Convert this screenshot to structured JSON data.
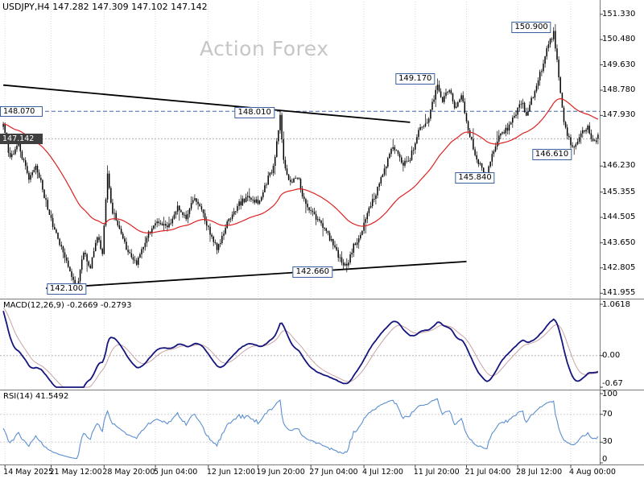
{
  "header": {
    "symbol_title": "USDJPY,H4 147.282 147.309 147.102 147.142",
    "watermark": "Action Forex"
  },
  "panes": {
    "macd_label": "MACD(12,26,9) -0.2669 -0.2793",
    "rsi_label": "RSI(14) 41.5492"
  },
  "axes": {
    "price_ticks": [
      "151.330",
      "150.480",
      "149.630",
      "148.780",
      "147.930",
      "146.230",
      "145.355",
      "144.505",
      "143.650",
      "142.805",
      "141.955"
    ],
    "current_price_tag": "147.142",
    "dashed_level_tag": "148.070",
    "macd_ticks": [
      {
        "label": "1.0618",
        "value": 1.0618
      },
      {
        "label": "0.00",
        "value": 0
      },
      {
        "label": "-0.67",
        "value": -0.67
      }
    ],
    "rsi_ticks": [
      {
        "label": "100",
        "value": 100
      },
      {
        "label": "70",
        "value": 70
      },
      {
        "label": "30",
        "value": 30
      },
      {
        "label": "0",
        "value": 0
      }
    ],
    "time_ticks": [
      {
        "label": "14 May 2025",
        "bar": 1
      },
      {
        "label": "21 May 12:00",
        "bar": 28
      },
      {
        "label": "28 May 20:00",
        "bar": 59
      },
      {
        "label": "5 Jun 04:00",
        "bar": 89
      },
      {
        "label": "12 Jun 12:00",
        "bar": 120
      },
      {
        "label": "19 Jun 20:00",
        "bar": 149
      },
      {
        "label": "27 Jun 04:00",
        "bar": 180
      },
      {
        "label": "4 Jul 12:00",
        "bar": 211
      },
      {
        "label": "11 Jul 20:00",
        "bar": 241
      },
      {
        "label": "21 Jul 04:00",
        "bar": 271
      },
      {
        "label": "28 Jul 12:00",
        "bar": 301
      },
      {
        "label": "4 Aug 00:00",
        "bar": 332
      }
    ]
  },
  "chart_data": {
    "type": "candlestick",
    "symbol": "USDJPY",
    "timeframe": "H4",
    "title": "USDJPY,H4",
    "ohlc_current": {
      "open": 147.282,
      "high": 147.309,
      "low": 147.102,
      "close": 147.142
    },
    "price_axis_range": [
      141.8,
      151.7
    ],
    "bars": 349,
    "seed": 20250805,
    "candle_color": "#000000",
    "ma_line": {
      "type": "EMA",
      "period": 55,
      "color": "#dd2222"
    },
    "price_anchors": [
      [
        0,
        147.55
      ],
      [
        4,
        146.5
      ],
      [
        9,
        146.9
      ],
      [
        15,
        145.8
      ],
      [
        19,
        146.3
      ],
      [
        26,
        144.8
      ],
      [
        31,
        143.9
      ],
      [
        36,
        143.2
      ],
      [
        40,
        142.5
      ],
      [
        43,
        142.15
      ],
      [
        47,
        143.3
      ],
      [
        51,
        142.8
      ],
      [
        55,
        143.9
      ],
      [
        58,
        143.3
      ],
      [
        61,
        145.9
      ],
      [
        63,
        144.9
      ],
      [
        67,
        144.2
      ],
      [
        71,
        143.6
      ],
      [
        78,
        142.95
      ],
      [
        84,
        143.9
      ],
      [
        90,
        144.4
      ],
      [
        96,
        144.1
      ],
      [
        102,
        144.9
      ],
      [
        107,
        144.5
      ],
      [
        112,
        145.2
      ],
      [
        117,
        144.6
      ],
      [
        125,
        143.4
      ],
      [
        131,
        144.3
      ],
      [
        137,
        144.9
      ],
      [
        143,
        145.2
      ],
      [
        149,
        145.0
      ],
      [
        154,
        145.7
      ],
      [
        158,
        146.2
      ],
      [
        162,
        147.9
      ],
      [
        164,
        146.4
      ],
      [
        168,
        145.6
      ],
      [
        172,
        145.9
      ],
      [
        176,
        145.1
      ],
      [
        181,
        144.6
      ],
      [
        187,
        144.2
      ],
      [
        193,
        143.6
      ],
      [
        198,
        143.0
      ],
      [
        201,
        142.8
      ],
      [
        205,
        143.6
      ],
      [
        209,
        143.9
      ],
      [
        213,
        144.6
      ],
      [
        218,
        145.3
      ],
      [
        223,
        146.1
      ],
      [
        228,
        146.9
      ],
      [
        233,
        146.3
      ],
      [
        238,
        146.5
      ],
      [
        243,
        147.4
      ],
      [
        248,
        147.6
      ],
      [
        251,
        148.3
      ],
      [
        254,
        149.0
      ],
      [
        257,
        148.4
      ],
      [
        261,
        148.8
      ],
      [
        264,
        148.2
      ],
      [
        268,
        148.6
      ],
      [
        272,
        147.5
      ],
      [
        276,
        146.6
      ],
      [
        280,
        146.1
      ],
      [
        283,
        145.95
      ],
      [
        287,
        146.8
      ],
      [
        291,
        147.3
      ],
      [
        295,
        147.5
      ],
      [
        299,
        147.9
      ],
      [
        303,
        148.4
      ],
      [
        306,
        148.0
      ],
      [
        310,
        148.6
      ],
      [
        314,
        149.3
      ],
      [
        318,
        150.1
      ],
      [
        322,
        150.75
      ],
      [
        325,
        149.2
      ],
      [
        328,
        147.8
      ],
      [
        331,
        147.1
      ],
      [
        334,
        146.85
      ],
      [
        338,
        147.3
      ],
      [
        342,
        147.5
      ],
      [
        345,
        147.0
      ],
      [
        348,
        147.142
      ]
    ],
    "key_extremes": [
      {
        "bar": 43,
        "low": 142.1
      },
      {
        "bar": 61,
        "high": 146.25
      },
      {
        "bar": 162,
        "high": 148.01
      },
      {
        "bar": 201,
        "low": 142.66
      },
      {
        "bar": 254,
        "high": 149.17
      },
      {
        "bar": 283,
        "low": 145.84
      },
      {
        "bar": 322,
        "high": 150.9
      },
      {
        "bar": 334,
        "low": 146.61
      }
    ],
    "trendlines": [
      {
        "name": "descending-resistance",
        "from": [
          0,
          148.95
        ],
        "to": [
          238,
          147.7
        ]
      },
      {
        "name": "ascending-support",
        "from": [
          25,
          142.12
        ],
        "to": [
          271,
          143.02
        ]
      }
    ],
    "levels": [
      {
        "label": "148.070",
        "value": 148.07,
        "style": "dashed-blue"
      },
      {
        "label": "147.142",
        "value": 147.142,
        "style": "current-price"
      }
    ],
    "annotations": [
      {
        "label": "150.900",
        "bar": 309,
        "price": 150.9
      },
      {
        "label": "149.170",
        "bar": 241,
        "price": 149.17
      },
      {
        "label": "148.010",
        "bar": 147,
        "price": 148.01
      },
      {
        "label": "146.610",
        "bar": 321,
        "price": 146.61
      },
      {
        "label": "145.840",
        "bar": 276,
        "price": 145.84
      },
      {
        "label": "142.660",
        "bar": 181,
        "price": 142.66
      },
      {
        "label": "142.100",
        "bar": 37,
        "price": 142.1
      }
    ],
    "indicators": {
      "macd": {
        "params": [
          12,
          26,
          9
        ],
        "values": [
          -0.2669,
          -0.2793
        ],
        "axis_top": 1.0618,
        "axis_bottom": -0.67,
        "line_color": "#15157d",
        "signal_color": "#c9a3a3"
      },
      "rsi": {
        "period": 14,
        "value": 41.5492,
        "levels": [
          70,
          30
        ],
        "line_color": "#5b8fd0",
        "axis_range": [
          0,
          100
        ]
      }
    },
    "colors": {
      "background": "#ffffff",
      "grid": "#d9d9d9",
      "watermark": "#c6c6c6",
      "annotation_border": "#3a5fa0"
    }
  }
}
